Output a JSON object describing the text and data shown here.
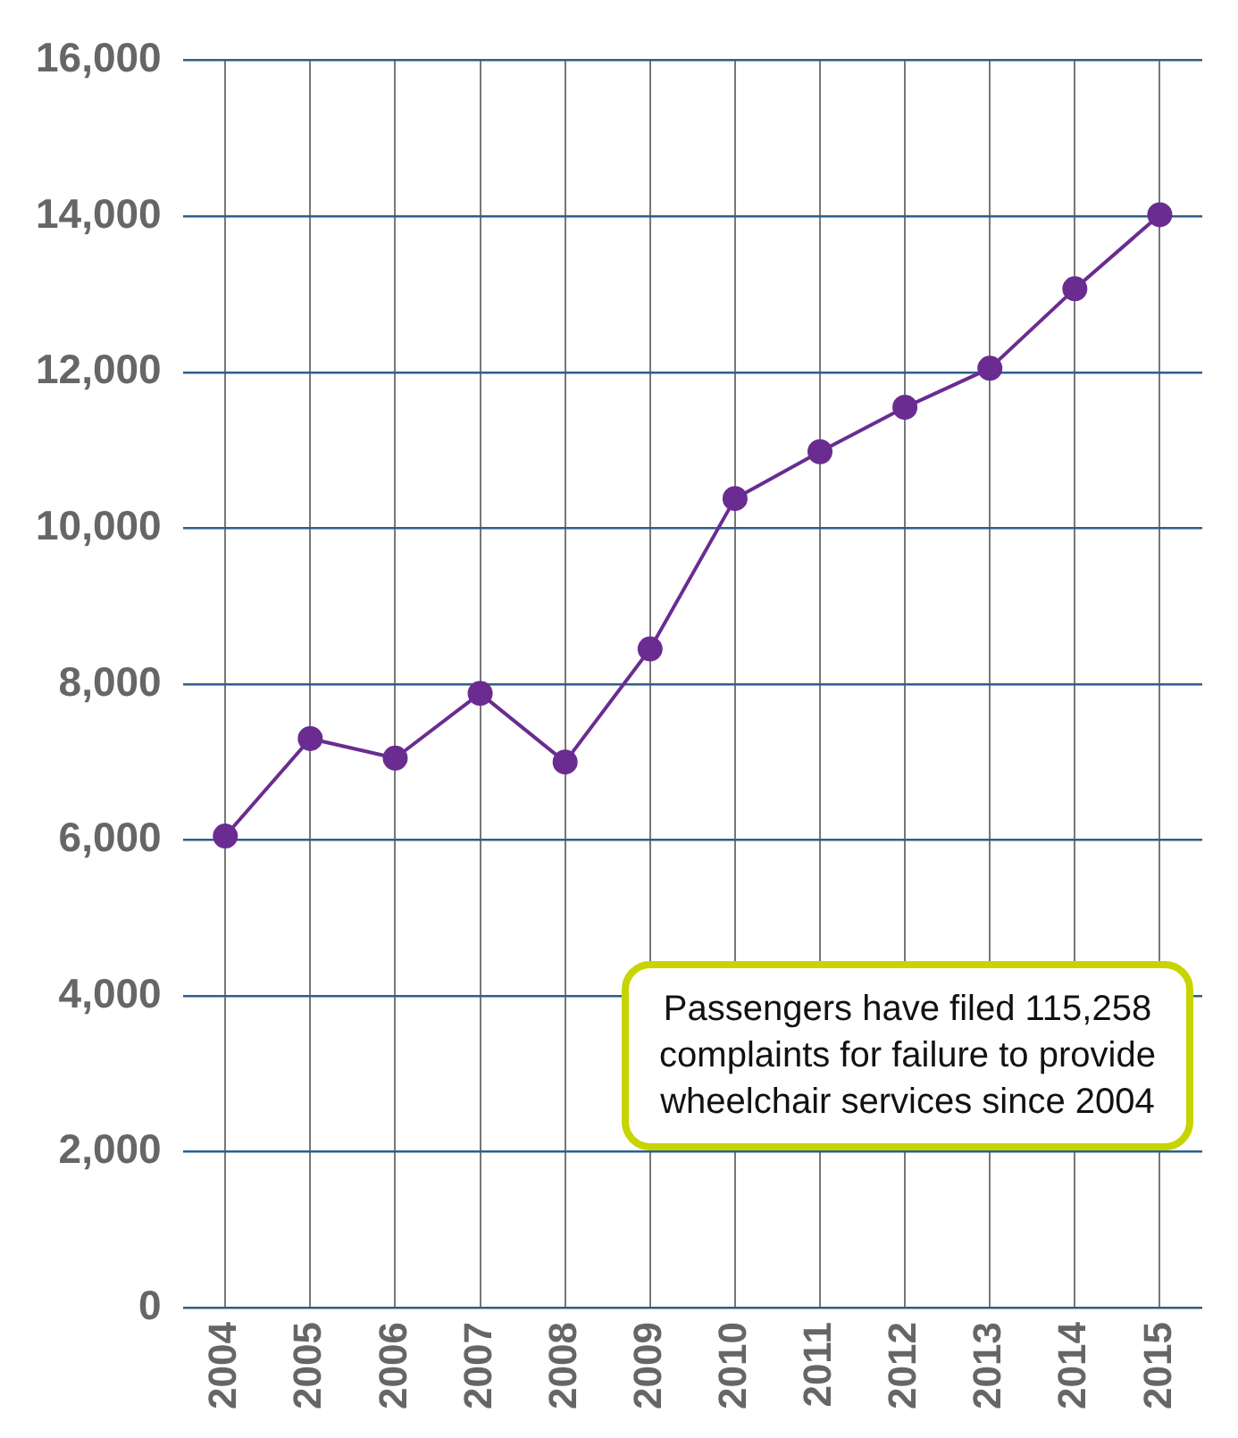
{
  "chart_data": {
    "type": "line",
    "categories": [
      "2004",
      "2005",
      "2006",
      "2007",
      "2008",
      "2009",
      "2010",
      "2011",
      "2012",
      "2013",
      "2014",
      "2015"
    ],
    "series": [
      {
        "color": "#6a2c91",
        "values": [
          6050,
          7300,
          7050,
          7880,
          7000,
          8450,
          10380,
          10980,
          11550,
          12050,
          13070,
          14020
        ]
      }
    ],
    "ylim": [
      0,
      16000
    ],
    "yticks": [
      {
        "value": 0,
        "label": "0"
      },
      {
        "value": 2000,
        "label": "2,000"
      },
      {
        "value": 4000,
        "label": "4,000"
      },
      {
        "value": 6000,
        "label": "6,000"
      },
      {
        "value": 8000,
        "label": "8,000"
      },
      {
        "value": 10000,
        "label": "10,000"
      },
      {
        "value": 12000,
        "label": "12,000"
      },
      {
        "value": 14000,
        "label": "14,000"
      },
      {
        "value": 16000,
        "label": "16,000"
      }
    ],
    "grid": true,
    "legend": false,
    "marker": "circle",
    "line_style": "solid",
    "annotations": [
      "Passengers have filed 115,258 complaints for failure to provide wheelchair services since 2004"
    ]
  }
}
